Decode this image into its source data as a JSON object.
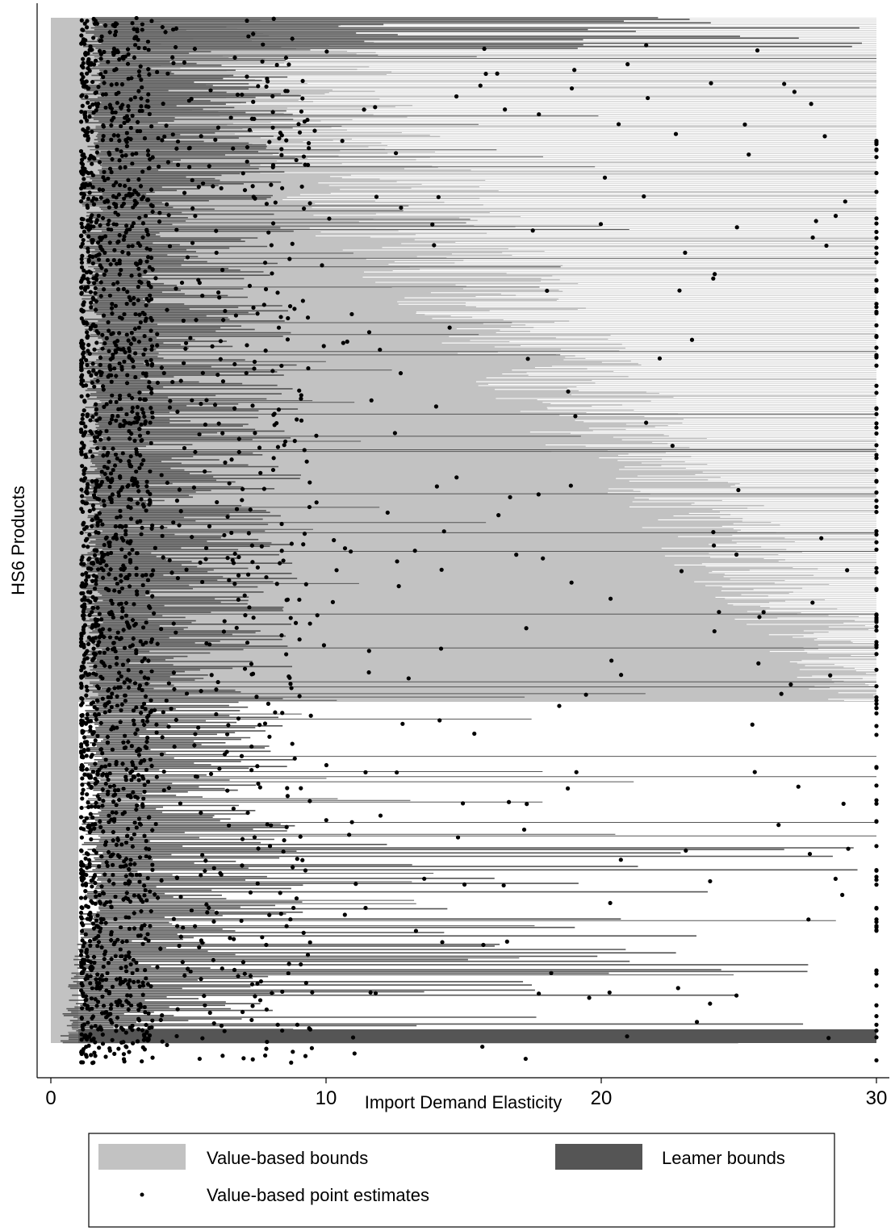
{
  "chart_data": {
    "type": "scatter",
    "title": "",
    "xlabel": "Import Demand Elasticity",
    "ylabel": "HS6 Products",
    "xlim": [
      0,
      30
    ],
    "xticks": [
      0,
      10,
      20,
      30
    ],
    "xtick_labels": [
      "0",
      "10",
      "20",
      "30"
    ],
    "grid": false,
    "y_values_shown": false,
    "notes": "Each HS6 product is one horizontal interval; products are ordered vertically. Upper block of products (about 60% of rows) has value-based bounds ending at the axis cap; lower block has Leamer bounds with wide spread. Point estimates cluster between 1 and 5 and a column sits at the cap of 30.",
    "series": [
      {
        "name": "Value-based bounds",
        "kind": "interval",
        "color": "#c2c2c2",
        "summary": {
          "lower_bound_range": [
            0,
            1
          ],
          "upper_bound_typical": [
            5,
            30
          ],
          "cap": 30
        }
      },
      {
        "name": "Leamer bounds",
        "kind": "interval",
        "color": "#555555",
        "summary": {
          "lower_bound_range": [
            1,
            2
          ],
          "upper_bound_typical": [
            3,
            12
          ],
          "cap": 30
        }
      },
      {
        "name": "Value-based point estimates",
        "kind": "scatter",
        "color": "#000000",
        "summary": {
          "dense_range": [
            1,
            5
          ],
          "outliers_range": [
            5,
            30
          ],
          "cap_column": 30
        }
      }
    ],
    "legend": {
      "position": "bottom",
      "entries": [
        {
          "label": "Value-based bounds",
          "symbol": "light-gray-box"
        },
        {
          "label": "Leamer bounds",
          "symbol": "dark-gray-box"
        },
        {
          "label": "Value-based point estimates",
          "symbol": "dot"
        }
      ]
    }
  },
  "colors": {
    "value_bounds": "#c2c2c2",
    "leamer_bounds": "#555555",
    "points": "#000000",
    "axis": "#000000",
    "background": "#ffffff"
  }
}
